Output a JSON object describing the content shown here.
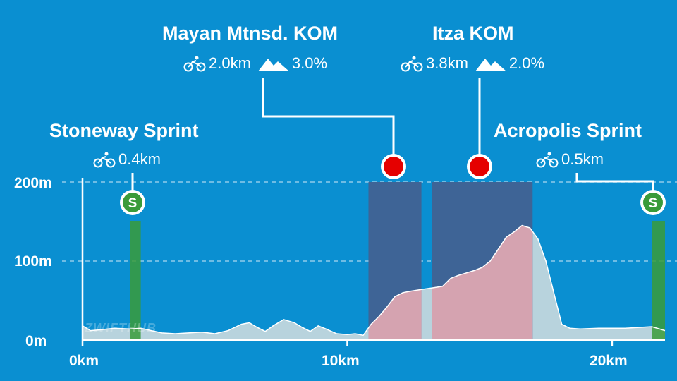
{
  "brand": "ZWIFTHUB",
  "chart_data": {
    "type": "area",
    "xlabel": "",
    "ylabel": "",
    "x_ticks": [
      "0km",
      "10km",
      "20km"
    ],
    "x_tick_values": [
      0,
      10,
      20
    ],
    "y_ticks": [
      "0m",
      "100m",
      "200m"
    ],
    "y_tick_values": [
      0,
      100,
      200
    ],
    "xlim": [
      0,
      22
    ],
    "ylim": [
      0,
      200
    ],
    "grid": "horizontal-dashed",
    "elevation_profile": {
      "x_km": [
        0,
        0.3,
        0.7,
        1.2,
        1.8,
        2.2,
        2.6,
        3.0,
        3.5,
        4.0,
        4.5,
        5.0,
        5.5,
        6.0,
        6.3,
        6.6,
        6.9,
        7.2,
        7.6,
        8.0,
        8.3,
        8.6,
        8.9,
        9.2,
        9.6,
        10.0,
        10.3,
        10.6,
        10.9,
        11.2,
        11.5,
        11.8,
        12.1,
        12.4,
        12.8,
        13.2,
        13.6,
        13.9,
        14.2,
        14.5,
        14.8,
        15.1,
        15.4,
        15.7,
        16.0,
        16.3,
        16.6,
        16.9,
        17.2,
        17.5,
        17.8,
        18.1,
        18.4,
        18.8,
        19.5,
        20.0,
        20.5,
        21.0,
        21.5,
        22.0
      ],
      "y_m": [
        18,
        12,
        13,
        15,
        14,
        15,
        12,
        9,
        8,
        9,
        10,
        8,
        12,
        20,
        22,
        16,
        11,
        18,
        26,
        22,
        16,
        11,
        18,
        14,
        8,
        7,
        8,
        6,
        20,
        30,
        42,
        55,
        60,
        62,
        64,
        66,
        68,
        78,
        82,
        85,
        88,
        92,
        100,
        115,
        130,
        137,
        145,
        142,
        128,
        100,
        60,
        20,
        15,
        14,
        15,
        15,
        15,
        16,
        17,
        12
      ],
      "color": "#b8d3dd"
    },
    "segments": [
      {
        "name": "Stoneway Sprint",
        "type": "sprint",
        "distance": "0.4km",
        "gradient": "",
        "start_km": 1.8,
        "end_km": 2.2,
        "badge": "S",
        "color": "#3a9b3a"
      },
      {
        "name": "Mayan Mtnsd. KOM",
        "type": "kom",
        "distance": "2.0km",
        "gradient": "3.0%",
        "start_km": 10.8,
        "end_km": 12.8,
        "color": "#e50000"
      },
      {
        "name": "Itza KOM",
        "type": "kom",
        "distance": "3.8km",
        "gradient": "2.0%",
        "start_km": 13.2,
        "end_km": 17.0,
        "color": "#e50000"
      },
      {
        "name": "Acropolis Sprint",
        "type": "sprint",
        "distance": "0.5km",
        "gradient": "",
        "start_km": 21.5,
        "end_km": 22.0,
        "badge": "S",
        "color": "#3a9b3a"
      }
    ]
  }
}
